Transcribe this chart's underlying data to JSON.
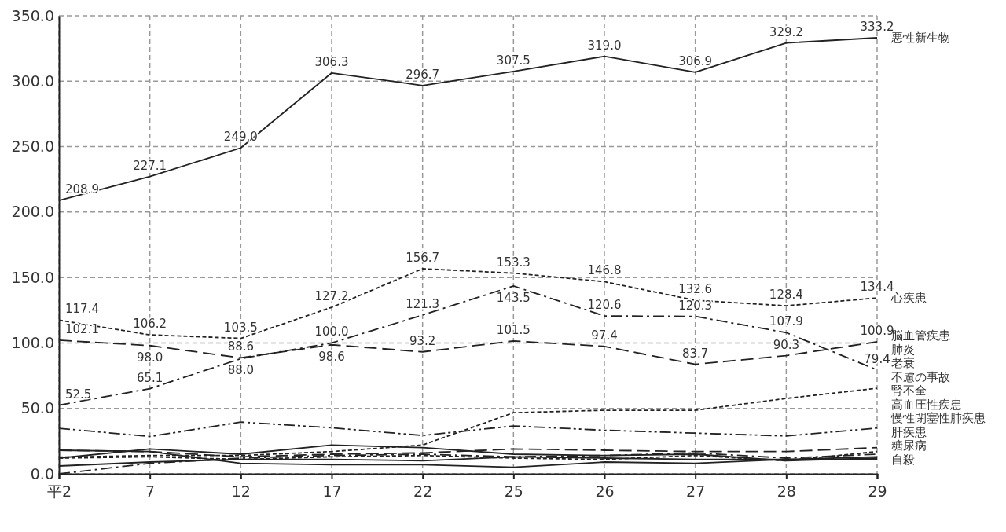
{
  "chart_data": {
    "type": "line",
    "categories": [
      "平2",
      "7",
      "12",
      "17",
      "22",
      "25",
      "26",
      "27",
      "28",
      "29"
    ],
    "ylim": [
      0,
      350
    ],
    "yticks": [
      {
        "value": 0,
        "label": "0.0"
      },
      {
        "value": 50,
        "label": "50.0"
      },
      {
        "value": 100,
        "label": "100.0"
      },
      {
        "value": 150,
        "label": "150.0"
      },
      {
        "value": 200,
        "label": "200.0"
      },
      {
        "value": 250,
        "label": "250.0"
      },
      {
        "value": 300,
        "label": "300.0"
      },
      {
        "value": 350,
        "label": "350.0"
      }
    ],
    "grid": true,
    "marker": "none",
    "series": [
      {
        "name": "悪性新生物",
        "color": "#222222",
        "line_style": "solid",
        "values": [
          208.9,
          227.1,
          249.0,
          306.3,
          296.7,
          307.5,
          319.0,
          306.9,
          329.2,
          333.2
        ],
        "value_labels": [
          "208.9",
          "227.1",
          "249.0",
          "306.3",
          "296.7",
          "307.5",
          "319.0",
          "306.9",
          "329.2",
          "333.2"
        ]
      },
      {
        "name": "心疾患",
        "color": "#222222",
        "line_style": "dotted",
        "values": [
          117.4,
          106.2,
          103.5,
          127.2,
          156.7,
          153.3,
          146.8,
          132.6,
          128.4,
          134.4
        ],
        "value_labels": [
          "117.4",
          "106.2",
          "103.5",
          "127.2",
          "156.7",
          "153.3",
          "146.8",
          "132.6",
          "128.4",
          "134.4"
        ]
      },
      {
        "name": "脳血管疾患",
        "color": "#222222",
        "line_style": "dashed",
        "values": [
          102.1,
          98.0,
          88.6,
          98.6,
          93.2,
          101.5,
          97.4,
          83.7,
          90.3,
          100.9
        ],
        "value_labels": [
          "102.1",
          "98.0",
          "88.6",
          "98.6",
          "93.2",
          "101.5",
          "97.4",
          "83.7",
          "90.3",
          "100.9"
        ]
      },
      {
        "name": "肺炎",
        "color": "#222222",
        "line_style": "dash-dot",
        "values": [
          52.5,
          65.1,
          88.0,
          100.0,
          121.3,
          143.5,
          120.6,
          120.3,
          107.9,
          79.4
        ],
        "value_labels": [
          "52.5",
          "65.1",
          "88.0",
          "100.0",
          "121.3",
          "143.5",
          "120.6",
          "120.3",
          "107.9",
          "79.4"
        ]
      },
      {
        "name": "老衰",
        "color": "#222222",
        "line_style": "dotted",
        "values": [
          12.7,
          14,
          14,
          17,
          22,
          46.7,
          48.6,
          48.6,
          57.6,
          65.4
        ]
      },
      {
        "name": "不慮の事故",
        "color": "#222222",
        "line_style": "dash-dot-dot",
        "values": [
          34.8,
          28.5,
          39.5,
          35.2,
          29.3,
          36.6,
          33.3,
          31.1,
          28.9,
          35.0
        ]
      },
      {
        "name": "腎不全",
        "color": "#222222",
        "line_style": "dashed",
        "values": [
          18,
          17,
          13,
          15,
          16,
          19,
          18,
          17,
          17,
          20
        ]
      },
      {
        "name": "慢性閉塞性肺疾患",
        "color": "#222222",
        "line_style": "dash-dot",
        "values": [
          0,
          8,
          12,
          14,
          15,
          13,
          14,
          16,
          12,
          15
        ]
      },
      {
        "name": "糖尿病",
        "color": "#222222",
        "line_style": "solid",
        "values": [
          12,
          19,
          15,
          22,
          20,
          15,
          14,
          15,
          10,
          12
        ]
      },
      {
        "name": "肝疾患",
        "color": "#222222",
        "line_style": "solid",
        "values": [
          18,
          17,
          8,
          7,
          7,
          5,
          9,
          8,
          11,
          13
        ]
      },
      {
        "name": "高血圧性疾患",
        "color": "#222222",
        "line_style": "dotted",
        "values": [
          12,
          13,
          11,
          13,
          14,
          12,
          11,
          14,
          10,
          17
        ]
      },
      {
        "name": "自殺",
        "color": "#222222",
        "line_style": "solid",
        "values": [
          6,
          9,
          11,
          11,
          10,
          13,
          12,
          11,
          11,
          11
        ]
      }
    ]
  }
}
